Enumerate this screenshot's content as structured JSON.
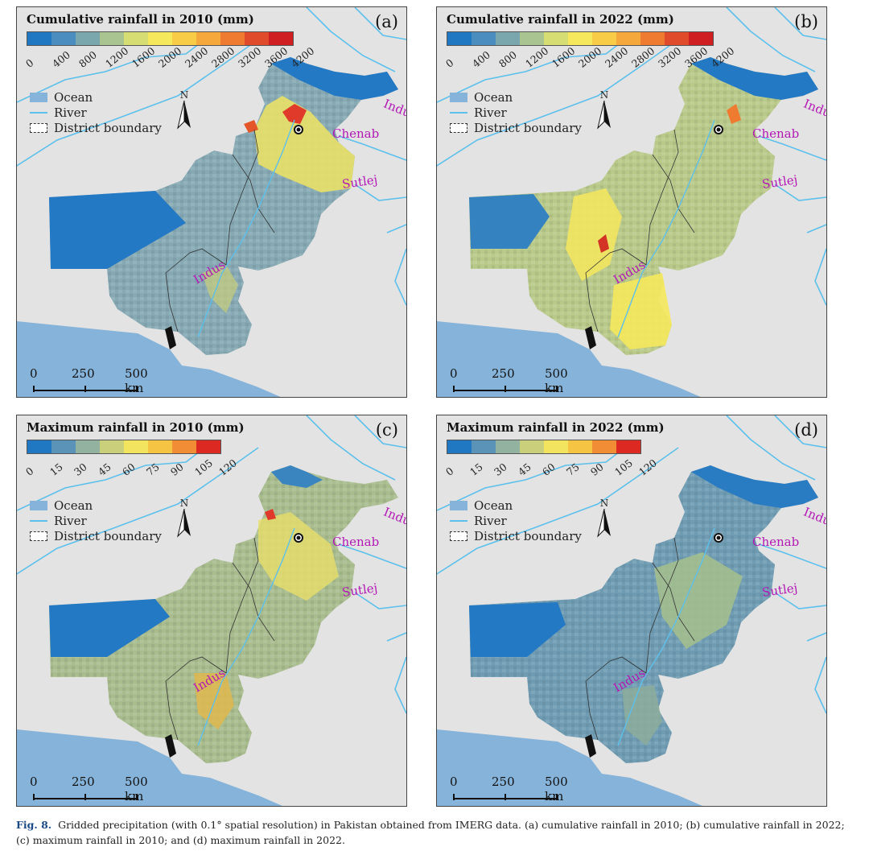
{
  "panels": [
    {
      "id": "a",
      "title": "Cumulative rainfall in 2010 (mm)",
      "letter": "(a)",
      "ticks": [
        "0",
        "400",
        "800",
        "1200",
        "1600",
        "2000",
        "2400",
        "2800",
        "3200",
        "3600",
        "4200"
      ]
    },
    {
      "id": "b",
      "title": "Cumulative rainfall in 2022 (mm)",
      "letter": "(b)",
      "ticks": [
        "0",
        "400",
        "800",
        "1200",
        "1600",
        "2000",
        "2400",
        "2800",
        "3200",
        "3600",
        "4200"
      ]
    },
    {
      "id": "c",
      "title": "Maximum rainfall in 2010 (mm)",
      "letter": "(c)",
      "ticks": [
        "0",
        "15",
        "30",
        "45",
        "60",
        "75",
        "90",
        "105",
        "120"
      ]
    },
    {
      "id": "d",
      "title": "Maximum rainfall in 2022 (mm)",
      "letter": "(d)",
      "ticks": [
        "0",
        "15",
        "30",
        "45",
        "60",
        "75",
        "90",
        "105",
        "120"
      ]
    }
  ],
  "cumulative_colors": [
    "#1f78c1",
    "#4c8dc0",
    "#7aa7ad",
    "#a9c391",
    "#d6dd73",
    "#f5e85c",
    "#f8cc46",
    "#f5a83c",
    "#ef7b31",
    "#e04b2b",
    "#cf1f22"
  ],
  "maximum_colors": [
    "#1f78c1",
    "#5b93b8",
    "#93b3a0",
    "#c9cf7b",
    "#f2e45f",
    "#f6c443",
    "#f18d34",
    "#dc2a23"
  ],
  "legend": {
    "ocean": "Ocean",
    "river": "River",
    "district": "District boundary",
    "north": "N"
  },
  "rivers": {
    "indus": "Indus",
    "chenab": "Chenab",
    "sutlej": "Sutlej"
  },
  "scale_bar": {
    "zero": "0",
    "mid": "250",
    "end": "500 km"
  },
  "caption": {
    "label": "Fig. 8.",
    "text": "Gridded precipitation (with 0.1° spatial resolution) in Pakistan obtained from IMERG data. (a) cumulative rainfall in 2010; (b) cumulative rainfall in 2022; (c) maximum rainfall in 2010; and (d) maximum rainfall in 2022."
  }
}
